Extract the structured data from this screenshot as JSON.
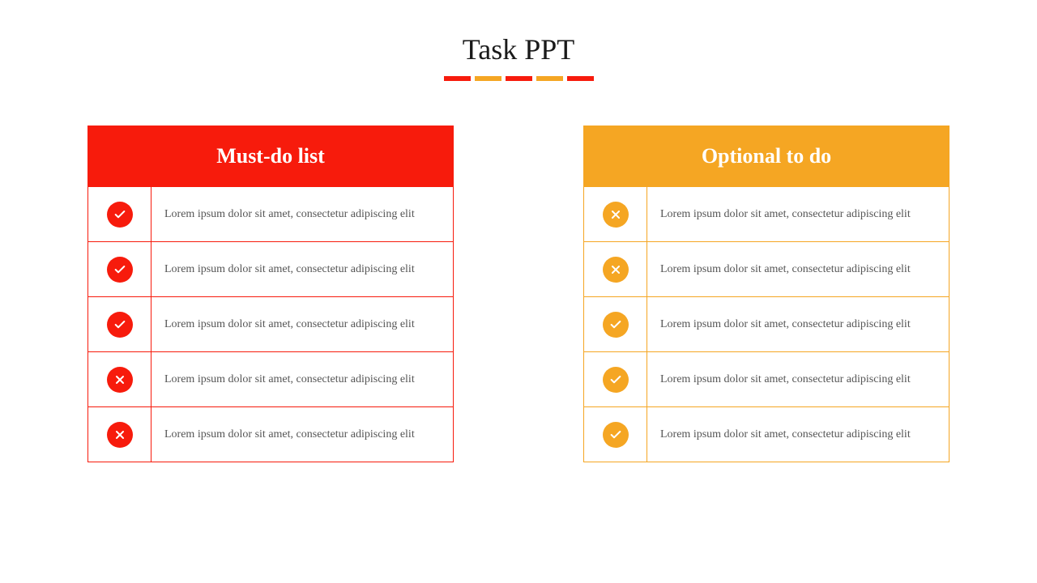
{
  "title": "Task PPT",
  "divider_colors": [
    "#f71b0c",
    "#f5a623",
    "#f71b0c",
    "#f5a623",
    "#f71b0c"
  ],
  "colors": {
    "red": "#f71b0c",
    "orange": "#f5a623",
    "red_border": "#f71b0c",
    "orange_border": "#f5a623"
  },
  "panels": {
    "left": {
      "header": "Must-do list",
      "header_bg": "#f71b0c",
      "border": "#f71b0c",
      "icon_bg": "#f71b0c",
      "rows": [
        {
          "icon": "check",
          "text": "Lorem ipsum dolor sit amet, consectetur adipiscing elit"
        },
        {
          "icon": "check",
          "text": "Lorem ipsum dolor sit amet, consectetur adipiscing elit"
        },
        {
          "icon": "check",
          "text": "Lorem ipsum dolor sit amet, consectetur adipiscing elit"
        },
        {
          "icon": "cross",
          "text": "Lorem ipsum dolor sit amet, consectetur adipiscing elit"
        },
        {
          "icon": "cross",
          "text": "Lorem ipsum dolor sit amet, consectetur adipiscing elit"
        }
      ]
    },
    "right": {
      "header": "Optional to do",
      "header_bg": "#f5a623",
      "border": "#f5a623",
      "icon_bg": "#f5a623",
      "rows": [
        {
          "icon": "cross",
          "text": "Lorem ipsum dolor sit amet, consectetur adipiscing elit"
        },
        {
          "icon": "cross",
          "text": "Lorem ipsum dolor sit amet, consectetur adipiscing elit"
        },
        {
          "icon": "check",
          "text": "Lorem ipsum dolor sit amet, consectetur adipiscing elit"
        },
        {
          "icon": "check",
          "text": "Lorem ipsum dolor sit amet, consectetur adipiscing elit"
        },
        {
          "icon": "check",
          "text": "Lorem ipsum dolor sit amet, consectetur adipiscing elit"
        }
      ]
    }
  }
}
